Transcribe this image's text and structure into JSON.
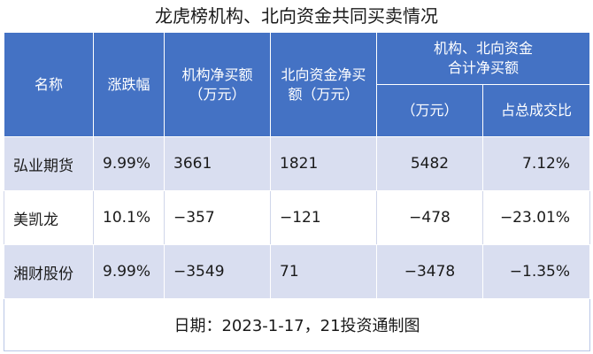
{
  "title": "龙虎榜机构、北向资金共同买卖情况",
  "headers": {
    "name": "名称",
    "change": "涨跌幅",
    "inst_net": [
      "机构净买额",
      "（万元）"
    ],
    "north_net": [
      "北向资金净买",
      "额（万元）"
    ],
    "combined_group": [
      "机构、北向资金",
      "合计净买额"
    ],
    "combined_unit": "（万元）",
    "share": "占总成交比"
  },
  "rows": [
    {
      "name": "弘业期货",
      "change": "9.99%",
      "inst_net": "3661",
      "north_net": "1821",
      "combined": "5482",
      "share": "7.12%"
    },
    {
      "name": "美凯龙",
      "change": "10.1%",
      "inst_net": "−357",
      "north_net": "−121",
      "combined": "−478",
      "share": "−23.01%"
    },
    {
      "name": "湘财股份",
      "change": "9.99%",
      "inst_net": "−3549",
      "north_net": "71",
      "combined": "−3478",
      "share": "−1.35%"
    }
  ],
  "footer": "日期：2023-1-17，21投资通制图",
  "colors": {
    "header_bg": "#4472c4",
    "row_shade": "#d9def0",
    "header_text": "#ffffff"
  }
}
